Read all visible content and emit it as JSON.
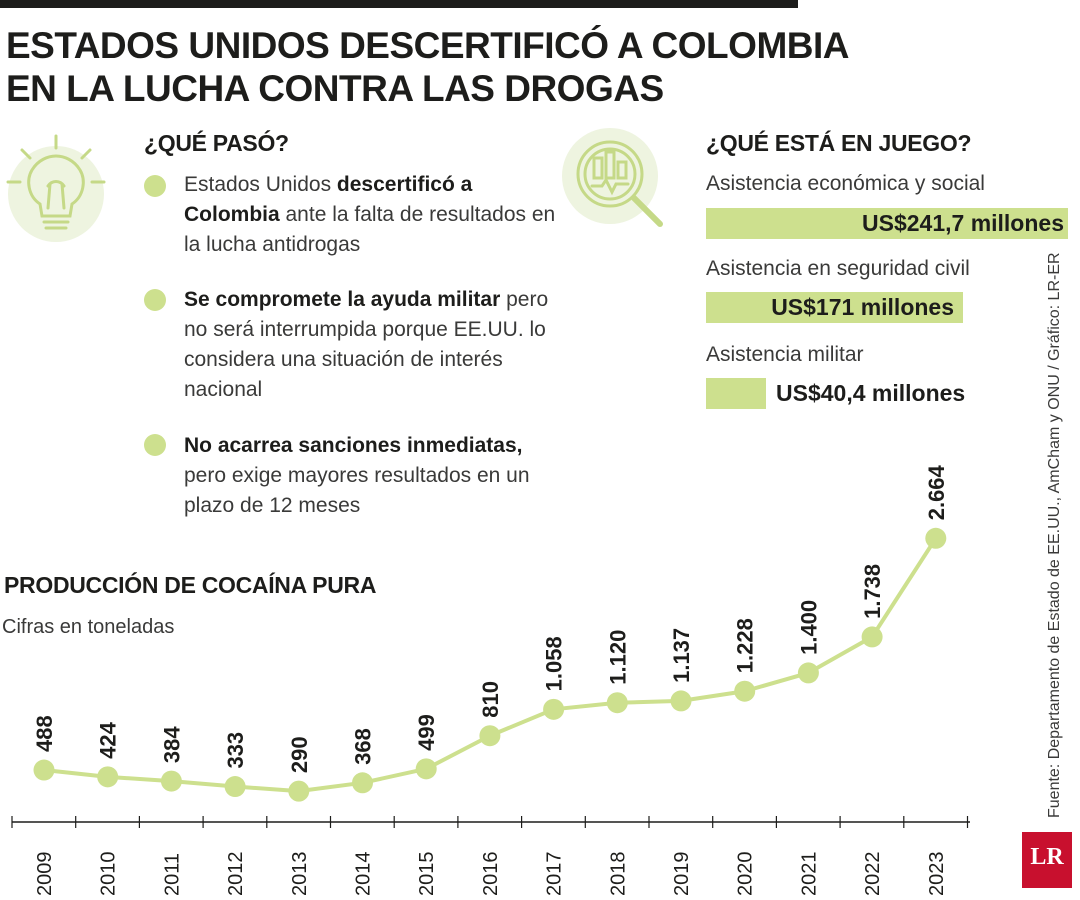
{
  "title": {
    "line1": "ESTADOS UNIDOS DESCERTIFICÓ A COLOMBIA",
    "line2": "EN LA LUCHA CONTRA LAS DROGAS"
  },
  "que_paso": {
    "heading": "¿QUÉ PASÓ?",
    "items": [
      {
        "pre": "Estados Unidos ",
        "bold": "descertificó a Colombia",
        "post": " ante la falta de resultados en la lucha antidrogas"
      },
      {
        "pre": "",
        "bold": "Se compromete la ayuda militar",
        "post": " pero no será interrumpida porque EE.UU. lo considera una situación de interés nacional"
      },
      {
        "pre": "",
        "bold": "No acarrea sanciones inmediatas,",
        "post": " pero exige mayores resultados en un plazo de 12 meses"
      }
    ]
  },
  "en_juego": {
    "heading": "¿QUÉ ESTÁ EN JUEGO?",
    "items": [
      {
        "label": "Asistencia económica y social",
        "value": "US$241,7 millones",
        "amount": 241.7
      },
      {
        "label": "Asistencia en seguridad civil",
        "value": "US$171 millones",
        "amount": 171
      },
      {
        "label": "Asistencia militar",
        "value": "US$40,4 millones",
        "amount": 40.4
      }
    ]
  },
  "chart_data": {
    "type": "line",
    "title": "PRODUCCIÓN DE COCAÍNA PURA",
    "subtitle": "Cifras en toneladas",
    "categories": [
      "2009",
      "2010",
      "2011",
      "2012",
      "2013",
      "2014",
      "2015",
      "2016",
      "2017",
      "2018",
      "2019",
      "2020",
      "2021",
      "2022",
      "2023"
    ],
    "values": [
      488,
      424,
      384,
      333,
      290,
      368,
      499,
      810,
      1058,
      1120,
      1137,
      1228,
      1400,
      1738,
      2664
    ],
    "labels": [
      "488",
      "424",
      "384",
      "333",
      "290",
      "368",
      "499",
      "810",
      "1.058",
      "1.120",
      "1.137",
      "1.228",
      "1.400",
      "1.738",
      "2.664"
    ],
    "ylim": [
      0,
      2700
    ],
    "color": "#cde08e"
  },
  "source": "Fuente: Departamento de Estado de EE.UU., AmCham y ONU / Gráfico: LR-ER",
  "logo": "LR",
  "colors": {
    "accent": "#cde08e",
    "icon_bg": "#eef4e0",
    "text": "#1d1d1b",
    "brand": "#c8102e"
  }
}
